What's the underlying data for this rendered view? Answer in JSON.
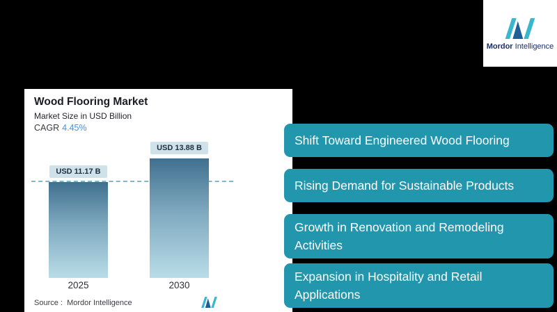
{
  "brand": {
    "logo_text_bold": "Mordor",
    "logo_text_light": " Intelligence"
  },
  "chart_data": {
    "type": "bar",
    "title": "Wood Flooring Market",
    "subtitle": "Market Size in USD Billion",
    "cagr_label": "CAGR",
    "cagr_value": "4.45%",
    "categories": [
      "2025",
      "2030"
    ],
    "values": [
      11.17,
      13.88
    ],
    "bar_labels": [
      "USD 11.17 B",
      "USD 13.88 B"
    ],
    "unit": "USD Billion",
    "ylim": [
      0,
      14
    ],
    "grid": "off",
    "legend": "none",
    "reference_line_value": 11.17,
    "source": "Source :  Mordor Intelligence"
  },
  "highlights": [
    {
      "label": "Shift Toward Engineered Wood Flooring"
    },
    {
      "label": "Rising Demand for Sustainable Products"
    },
    {
      "label": "Growth in Renovation and Remodeling Activities"
    },
    {
      "label": "Expansion in Hospitality and Retail Applications"
    }
  ],
  "colors": {
    "background": "#000000",
    "card": "#ffffff",
    "highlight_box": "#2196ad",
    "bar_gradient_top": "#40708f",
    "bar_gradient_bottom": "#b9dde8",
    "value_label_bg": "#cfe2ea",
    "cagr_value": "#4a8fe2",
    "reference_line": "#82b7cb",
    "logo_teal": "#3ab6cf",
    "logo_navy": "#1e5f96"
  }
}
